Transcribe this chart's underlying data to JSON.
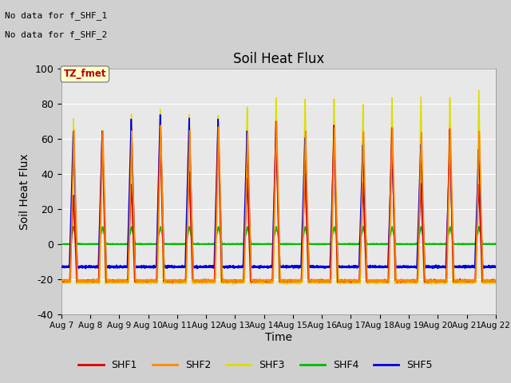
{
  "title": "Soil Heat Flux",
  "ylabel": "Soil Heat Flux",
  "xlabel": "Time",
  "ylim": [
    -40,
    100
  ],
  "no_data_text_1": "No data for f_SHF_1",
  "no_data_text_2": "No data for f_SHF_2",
  "tz_label": "TZ_fmet",
  "x_tick_labels": [
    "Aug 7",
    "Aug 8",
    "Aug 9",
    "Aug 10",
    "Aug 11",
    "Aug 12",
    "Aug 13",
    "Aug 14",
    "Aug 15",
    "Aug 16",
    "Aug 17",
    "Aug 18",
    "Aug 19",
    "Aug 20",
    "Aug 21",
    "Aug 22"
  ],
  "yticks": [
    -40,
    -20,
    0,
    20,
    40,
    60,
    80,
    100
  ],
  "series_colors": {
    "SHF1": "#dd0000",
    "SHF2": "#ff8800",
    "SHF3": "#dddd00",
    "SHF4": "#00bb00",
    "SHF5": "#0000dd"
  },
  "legend_labels": [
    "SHF1",
    "SHF2",
    "SHF3",
    "SHF4",
    "SHF5"
  ],
  "legend_colors": [
    "#dd0000",
    "#ff8800",
    "#dddd00",
    "#00bb00",
    "#0000dd"
  ]
}
